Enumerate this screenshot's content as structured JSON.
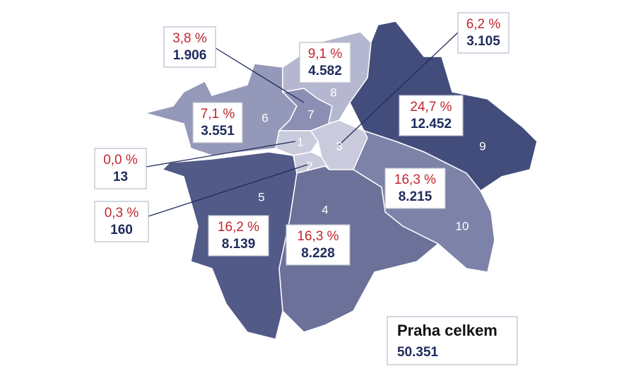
{
  "districts": [
    {
      "id": "1",
      "percent": "0,0 %",
      "count": "13"
    },
    {
      "id": "2",
      "percent": "0,3 %",
      "count": "160"
    },
    {
      "id": "3",
      "percent": "6,2 %",
      "count": "3.105"
    },
    {
      "id": "4",
      "percent": "16,3 %",
      "count": "8.228"
    },
    {
      "id": "5",
      "percent": "16,2 %",
      "count": "8.139"
    },
    {
      "id": "6",
      "percent": "7,1 %",
      "count": "3.551"
    },
    {
      "id": "7",
      "percent": "3,8 %",
      "count": "1.906"
    },
    {
      "id": "8",
      "percent": "9,1 %",
      "count": "4.582"
    },
    {
      "id": "9",
      "percent": "24,7 %",
      "count": "12.452"
    },
    {
      "id": "10",
      "percent": "16,3 %",
      "count": "8.215"
    }
  ],
  "total": {
    "label": "Praha celkem",
    "value": "50.351"
  }
}
